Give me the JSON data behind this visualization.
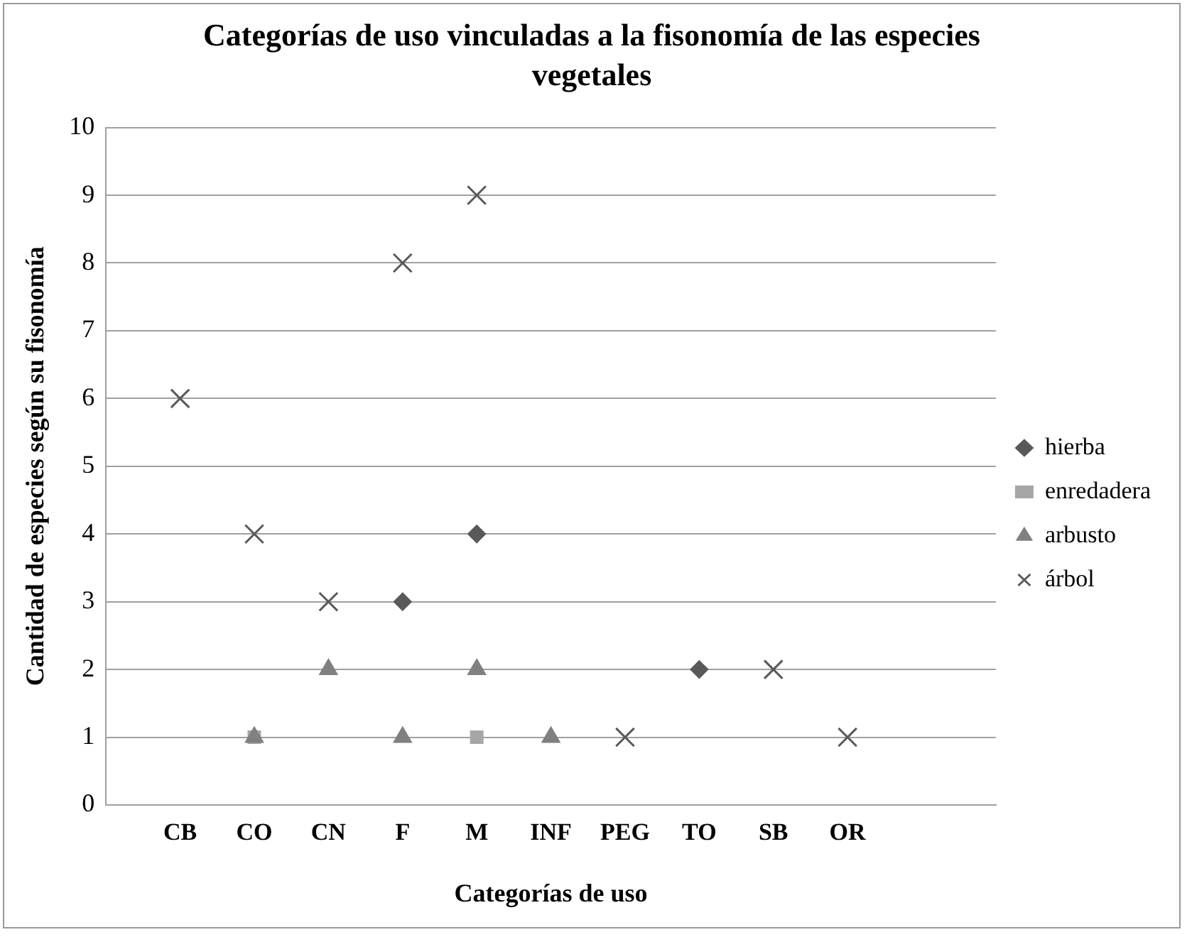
{
  "chart_data": {
    "type": "scatter",
    "title": "Categorías  de uso vinculadas  a la fisonomía de las especies vegetales",
    "xlabel": "Categorías de uso",
    "ylabel": "Cantidad de especies según su fisonomía",
    "categories": [
      null,
      "CB",
      "CO",
      "CN",
      "F",
      "M",
      "INF",
      "PEG",
      "TO",
      "SB",
      "OR",
      null,
      null
    ],
    "series": [
      {
        "name": "hierba",
        "color": "#595959",
        "marker": "diamond",
        "values": [
          null,
          null,
          null,
          null,
          3,
          4,
          null,
          null,
          2,
          null,
          null,
          null,
          null
        ]
      },
      {
        "name": "enredadera",
        "color": "#a6a6a6",
        "marker": "square",
        "values": [
          null,
          null,
          1,
          null,
          null,
          1,
          null,
          null,
          null,
          null,
          null,
          null,
          null
        ]
      },
      {
        "name": "arbusto",
        "color": "#808080",
        "marker": "triangle",
        "values": [
          null,
          null,
          1,
          2,
          1,
          2,
          1,
          null,
          null,
          null,
          null,
          null,
          null
        ]
      },
      {
        "name": "árbol",
        "color": "#595959",
        "marker": "cross",
        "values": [
          null,
          6,
          4,
          3,
          8,
          9,
          null,
          1,
          null,
          2,
          1,
          null,
          null
        ]
      }
    ],
    "ylim": [
      0,
      10
    ],
    "yticks": [
      0,
      1,
      2,
      3,
      4,
      5,
      6,
      7,
      8,
      9,
      10
    ],
    "grid": "y",
    "legend": "right"
  }
}
